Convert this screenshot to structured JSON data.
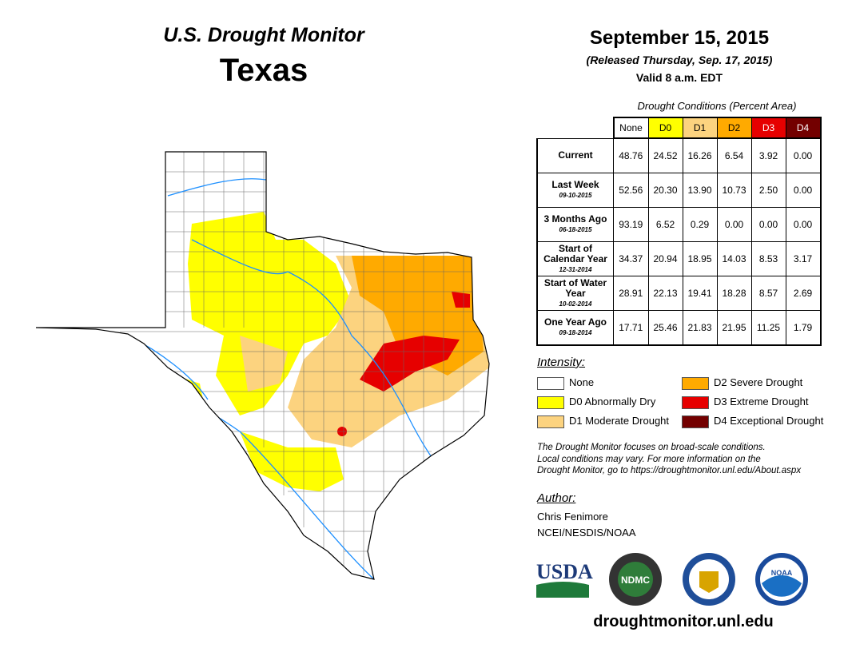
{
  "header": {
    "title": "U.S. Drought Monitor",
    "region": "Texas",
    "date": "September 15, 2015",
    "released": "(Released Thursday, Sep. 17, 2015)",
    "valid": "Valid 8 a.m. EDT"
  },
  "table": {
    "caption": "Drought Conditions (Percent Area)",
    "columns": [
      "None",
      "D0",
      "D1",
      "D2",
      "D3",
      "D4"
    ],
    "column_colors": [
      "#ffffff",
      "#ffff00",
      "#fcd37f",
      "#ffaa00",
      "#e60000",
      "#730000"
    ],
    "rows": [
      {
        "label": "Current",
        "date": "",
        "values": [
          "48.76",
          "24.52",
          "16.26",
          "6.54",
          "3.92",
          "0.00"
        ]
      },
      {
        "label": "Last Week",
        "date": "09-10-2015",
        "values": [
          "52.56",
          "20.30",
          "13.90",
          "10.73",
          "2.50",
          "0.00"
        ]
      },
      {
        "label": "3 Months Ago",
        "date": "06-18-2015",
        "values": [
          "93.19",
          "6.52",
          "0.29",
          "0.00",
          "0.00",
          "0.00"
        ]
      },
      {
        "label": "Start of Calendar Year",
        "date": "12-31-2014",
        "values": [
          "34.37",
          "20.94",
          "18.95",
          "14.03",
          "8.53",
          "3.17"
        ]
      },
      {
        "label": "Start of Water Year",
        "date": "10-02-2014",
        "values": [
          "28.91",
          "22.13",
          "19.41",
          "18.28",
          "8.57",
          "2.69"
        ]
      },
      {
        "label": "One Year Ago",
        "date": "09-18-2014",
        "values": [
          "17.71",
          "25.46",
          "21.83",
          "21.95",
          "11.25",
          "1.79"
        ]
      }
    ]
  },
  "legend": {
    "title": "Intensity:",
    "items": [
      {
        "label": "None",
        "color": "#ffffff"
      },
      {
        "label": "D0 Abnormally Dry",
        "color": "#ffff00"
      },
      {
        "label": "D1 Moderate Drought",
        "color": "#fcd37f"
      },
      {
        "label": "D2 Severe Drought",
        "color": "#ffaa00"
      },
      {
        "label": "D3 Extreme Drought",
        "color": "#e60000"
      },
      {
        "label": "D4 Exceptional Drought",
        "color": "#730000"
      }
    ]
  },
  "note": [
    "The Drought Monitor focuses on broad-scale conditions.",
    "Local conditions may vary. For more information on the",
    "Drought Monitor, go to https://droughtmonitor.unl.edu/About.aspx"
  ],
  "author": {
    "title": "Author:",
    "name": "Chris Fenimore",
    "org": "NCEI/NESDIS/NOAA"
  },
  "logos": [
    "USDA",
    "NDMC",
    "NOAA"
  ],
  "footer_url": "droughtmonitor.unl.edu"
}
